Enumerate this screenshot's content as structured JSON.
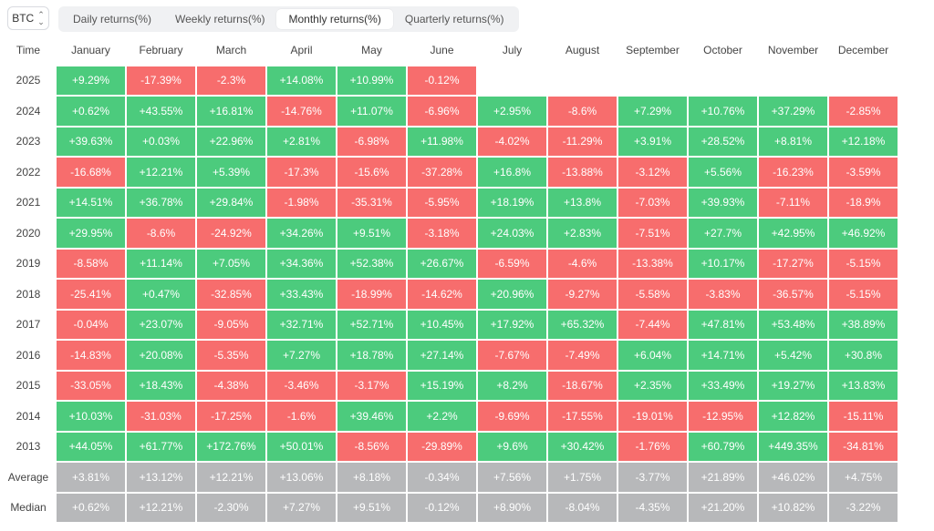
{
  "asset_selector": {
    "value": "BTC"
  },
  "tabs": [
    {
      "label": "Daily returns(%)",
      "active": false
    },
    {
      "label": "Weekly returns(%)",
      "active": false
    },
    {
      "label": "Monthly returns(%)",
      "active": true
    },
    {
      "label": "Quarterly returns(%)",
      "active": false
    }
  ],
  "table": {
    "time_header": "Time",
    "months": [
      "January",
      "February",
      "March",
      "April",
      "May",
      "June",
      "July",
      "August",
      "September",
      "October",
      "November",
      "December"
    ],
    "rows": [
      {
        "label": "2025",
        "cells": [
          "+9.29%",
          "-17.39%",
          "-2.3%",
          "+14.08%",
          "+10.99%",
          "-0.12%",
          "",
          "",
          "",
          "",
          "",
          ""
        ]
      },
      {
        "label": "2024",
        "cells": [
          "+0.62%",
          "+43.55%",
          "+16.81%",
          "-14.76%",
          "+11.07%",
          "-6.96%",
          "+2.95%",
          "-8.6%",
          "+7.29%",
          "+10.76%",
          "+37.29%",
          "-2.85%"
        ]
      },
      {
        "label": "2023",
        "cells": [
          "+39.63%",
          "+0.03%",
          "+22.96%",
          "+2.81%",
          "-6.98%",
          "+11.98%",
          "-4.02%",
          "-11.29%",
          "+3.91%",
          "+28.52%",
          "+8.81%",
          "+12.18%"
        ]
      },
      {
        "label": "2022",
        "cells": [
          "-16.68%",
          "+12.21%",
          "+5.39%",
          "-17.3%",
          "-15.6%",
          "-37.28%",
          "+16.8%",
          "-13.88%",
          "-3.12%",
          "+5.56%",
          "-16.23%",
          "-3.59%"
        ]
      },
      {
        "label": "2021",
        "cells": [
          "+14.51%",
          "+36.78%",
          "+29.84%",
          "-1.98%",
          "-35.31%",
          "-5.95%",
          "+18.19%",
          "+13.8%",
          "-7.03%",
          "+39.93%",
          "-7.11%",
          "-18.9%"
        ]
      },
      {
        "label": "2020",
        "cells": [
          "+29.95%",
          "-8.6%",
          "-24.92%",
          "+34.26%",
          "+9.51%",
          "-3.18%",
          "+24.03%",
          "+2.83%",
          "-7.51%",
          "+27.7%",
          "+42.95%",
          "+46.92%"
        ]
      },
      {
        "label": "2019",
        "cells": [
          "-8.58%",
          "+11.14%",
          "+7.05%",
          "+34.36%",
          "+52.38%",
          "+26.67%",
          "-6.59%",
          "-4.6%",
          "-13.38%",
          "+10.17%",
          "-17.27%",
          "-5.15%"
        ]
      },
      {
        "label": "2018",
        "cells": [
          "-25.41%",
          "+0.47%",
          "-32.85%",
          "+33.43%",
          "-18.99%",
          "-14.62%",
          "+20.96%",
          "-9.27%",
          "-5.58%",
          "-3.83%",
          "-36.57%",
          "-5.15%"
        ]
      },
      {
        "label": "2017",
        "cells": [
          "-0.04%",
          "+23.07%",
          "-9.05%",
          "+32.71%",
          "+52.71%",
          "+10.45%",
          "+17.92%",
          "+65.32%",
          "-7.44%",
          "+47.81%",
          "+53.48%",
          "+38.89%"
        ]
      },
      {
        "label": "2016",
        "cells": [
          "-14.83%",
          "+20.08%",
          "-5.35%",
          "+7.27%",
          "+18.78%",
          "+27.14%",
          "-7.67%",
          "-7.49%",
          "+6.04%",
          "+14.71%",
          "+5.42%",
          "+30.8%"
        ]
      },
      {
        "label": "2015",
        "cells": [
          "-33.05%",
          "+18.43%",
          "-4.38%",
          "-3.46%",
          "-3.17%",
          "+15.19%",
          "+8.2%",
          "-18.67%",
          "+2.35%",
          "+33.49%",
          "+19.27%",
          "+13.83%"
        ]
      },
      {
        "label": "2014",
        "cells": [
          "+10.03%",
          "-31.03%",
          "-17.25%",
          "-1.6%",
          "+39.46%",
          "+2.2%",
          "-9.69%",
          "-17.55%",
          "-19.01%",
          "-12.95%",
          "+12.82%",
          "-15.11%"
        ]
      },
      {
        "label": "2013",
        "cells": [
          "+44.05%",
          "+61.77%",
          "+172.76%",
          "+50.01%",
          "-8.56%",
          "-29.89%",
          "+9.6%",
          "+30.42%",
          "-1.76%",
          "+60.79%",
          "+449.35%",
          "-34.81%"
        ]
      }
    ],
    "stats": [
      {
        "label": "Average",
        "cells": [
          "+3.81%",
          "+13.12%",
          "+12.21%",
          "+13.06%",
          "+8.18%",
          "-0.34%",
          "+7.56%",
          "+1.75%",
          "-3.77%",
          "+21.89%",
          "+46.02%",
          "+4.75%"
        ]
      },
      {
        "label": "Median",
        "cells": [
          "+0.62%",
          "+12.21%",
          "-2.30%",
          "+7.27%",
          "+9.51%",
          "-0.12%",
          "+8.90%",
          "-8.04%",
          "-4.35%",
          "+21.20%",
          "+10.82%",
          "-3.22%"
        ]
      }
    ]
  },
  "colors": {
    "positive": "#4ccb7d",
    "negative": "#f76d6d",
    "stat": "#b7b8ba"
  }
}
